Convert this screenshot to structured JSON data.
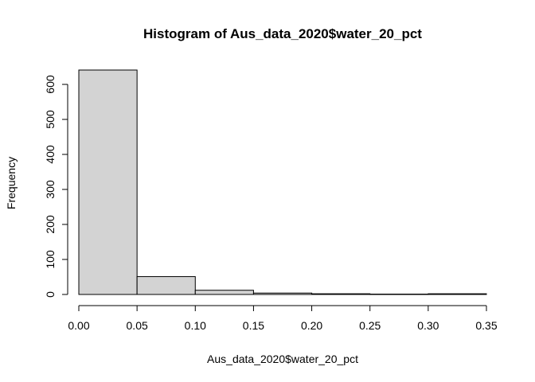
{
  "chart_data": {
    "type": "bar",
    "title": "Histogram of Aus_data_2020$water_20_pct",
    "xlabel": "Aus_data_2020$water_20_pct",
    "ylabel": "Frequency",
    "bins": [
      {
        "from": 0.0,
        "to": 0.05,
        "count": 641
      },
      {
        "from": 0.05,
        "to": 0.1,
        "count": 51
      },
      {
        "from": 0.1,
        "to": 0.15,
        "count": 12
      },
      {
        "from": 0.15,
        "to": 0.2,
        "count": 4
      },
      {
        "from": 0.2,
        "to": 0.25,
        "count": 2
      },
      {
        "from": 0.25,
        "to": 0.3,
        "count": 1
      },
      {
        "from": 0.3,
        "to": 0.35,
        "count": 2
      }
    ],
    "xlim": [
      0.0,
      0.35
    ],
    "ylim": [
      0,
      641
    ],
    "xticks": [
      "0.00",
      "0.05",
      "0.10",
      "0.15",
      "0.20",
      "0.25",
      "0.30",
      "0.35"
    ],
    "yticks": [
      "0",
      "100",
      "200",
      "300",
      "400",
      "500",
      "600"
    ],
    "bar_fill": "#d3d3d3",
    "bar_stroke": "#000000",
    "grid": false
  }
}
